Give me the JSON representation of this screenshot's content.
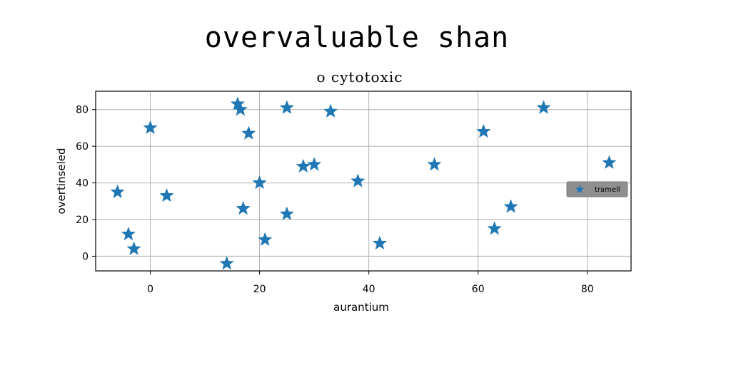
{
  "chart_data": {
    "type": "scatter",
    "title": "overvaluable shan",
    "subtitle": "o cytotoxic",
    "xlabel": "aurantium",
    "ylabel": "overtinseled",
    "xlim": [
      -10,
      88
    ],
    "ylim": [
      -8,
      90
    ],
    "xticks": [
      0,
      20,
      40,
      60,
      80
    ],
    "yticks": [
      0,
      20,
      40,
      60,
      80
    ],
    "grid": true,
    "legend_position": "center-right",
    "marker": "star",
    "series": [
      {
        "name": "tramell",
        "color": "#1f77b4",
        "points": [
          [
            -6,
            35
          ],
          [
            -4,
            12
          ],
          [
            -3,
            4
          ],
          [
            0,
            70
          ],
          [
            3,
            33
          ],
          [
            14,
            -4
          ],
          [
            16,
            83
          ],
          [
            16.5,
            80
          ],
          [
            17,
            26
          ],
          [
            18,
            67
          ],
          [
            20,
            40
          ],
          [
            21,
            9
          ],
          [
            25,
            81
          ],
          [
            25,
            23
          ],
          [
            28,
            49
          ],
          [
            30,
            50
          ],
          [
            33,
            79
          ],
          [
            38,
            41
          ],
          [
            42,
            7
          ],
          [
            52,
            50
          ],
          [
            61,
            68
          ],
          [
            63,
            15
          ],
          [
            66,
            27
          ],
          [
            72,
            81
          ],
          [
            84,
            51
          ]
        ]
      }
    ]
  }
}
